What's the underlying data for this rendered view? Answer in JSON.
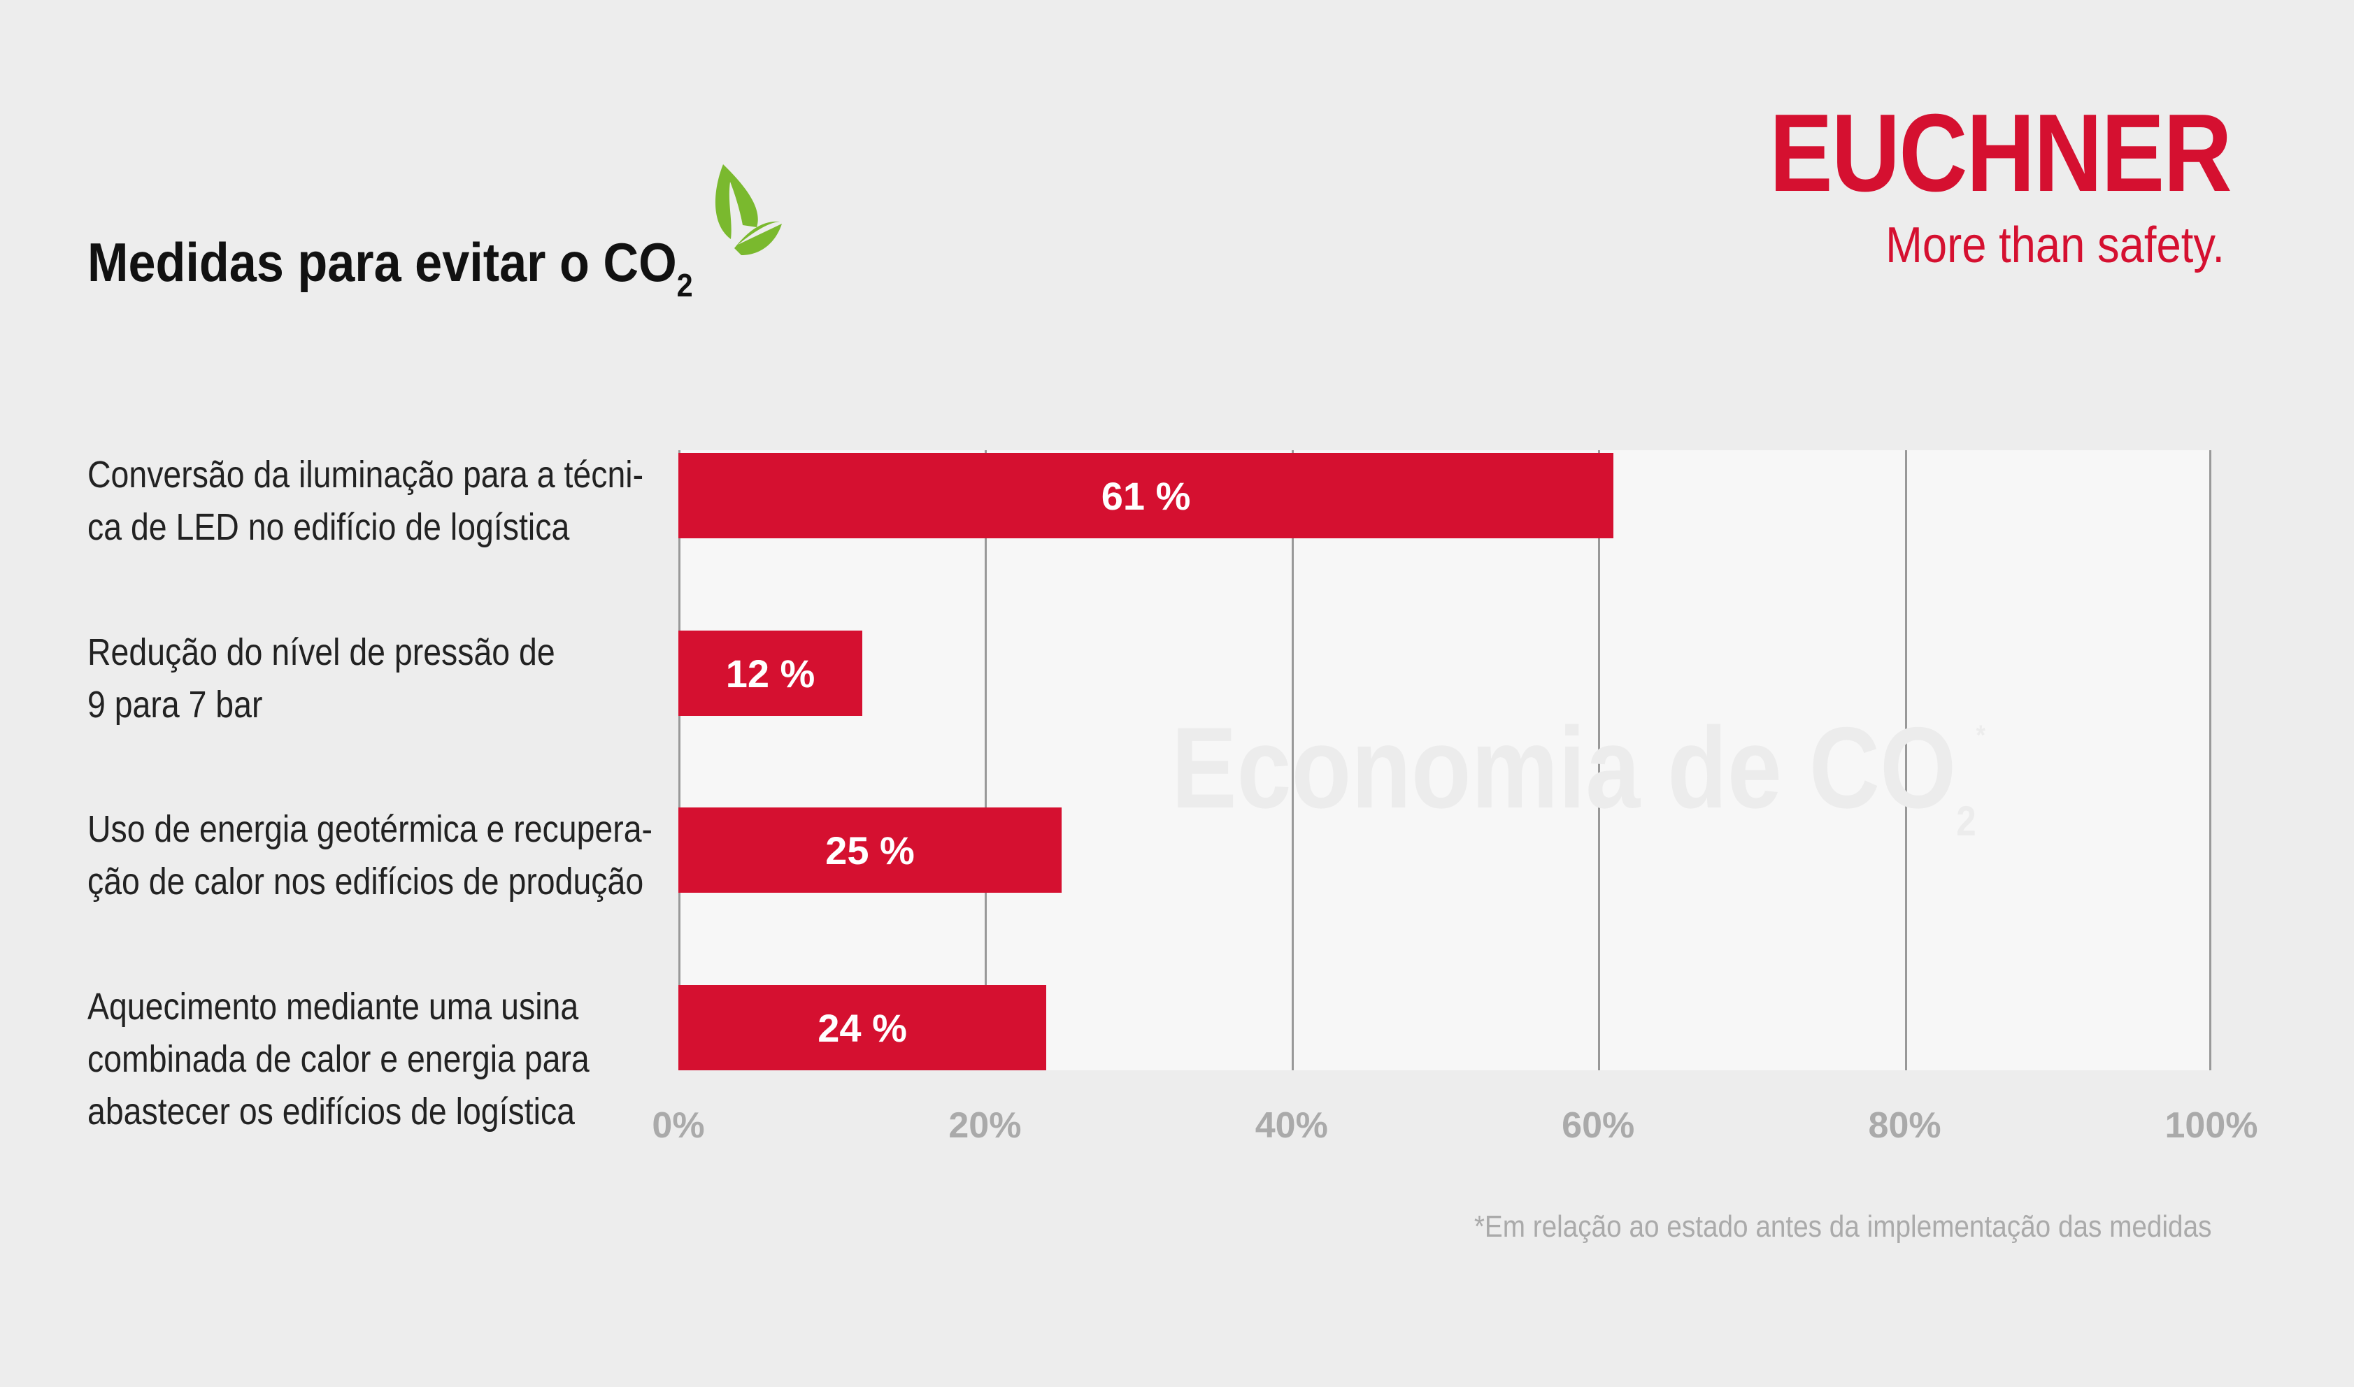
{
  "header": {
    "title": "Medidas para evitar o CO",
    "title_sub": "2",
    "icon": "leaf-icon"
  },
  "brand": {
    "logo": "EUCHNER",
    "slogan": "More than safety.",
    "color": "#d51030"
  },
  "chart_data": {
    "type": "bar",
    "orientation": "horizontal",
    "categories": [
      [
        "Conversão da iluminação para a técni-",
        "ca de LED no edifício de logística"
      ],
      [
        "Redução do nível de pressão de",
        "9 para 7 bar"
      ],
      [
        "Uso de energia geotérmica e recupera-",
        "ção de calor nos edifícios de produção"
      ],
      [
        "Aquecimento mediante uma usina",
        "combinada de calor e energia para",
        "abastecer os edifícios de logística"
      ]
    ],
    "values": [
      61,
      12,
      25,
      24
    ],
    "data_labels": [
      "61 %",
      "12 %",
      "25 %",
      "24 %"
    ],
    "xlim": [
      0,
      100
    ],
    "xticks": [
      "0%",
      "20%",
      "40%",
      "60%",
      "80%",
      "100%"
    ],
    "grid": true,
    "bar_color": "#d51030",
    "watermark": {
      "text": "Economia de CO",
      "sub": "2",
      "sup": "*"
    },
    "footnote": "*Em relação ao estado antes da implementação das medidas"
  }
}
